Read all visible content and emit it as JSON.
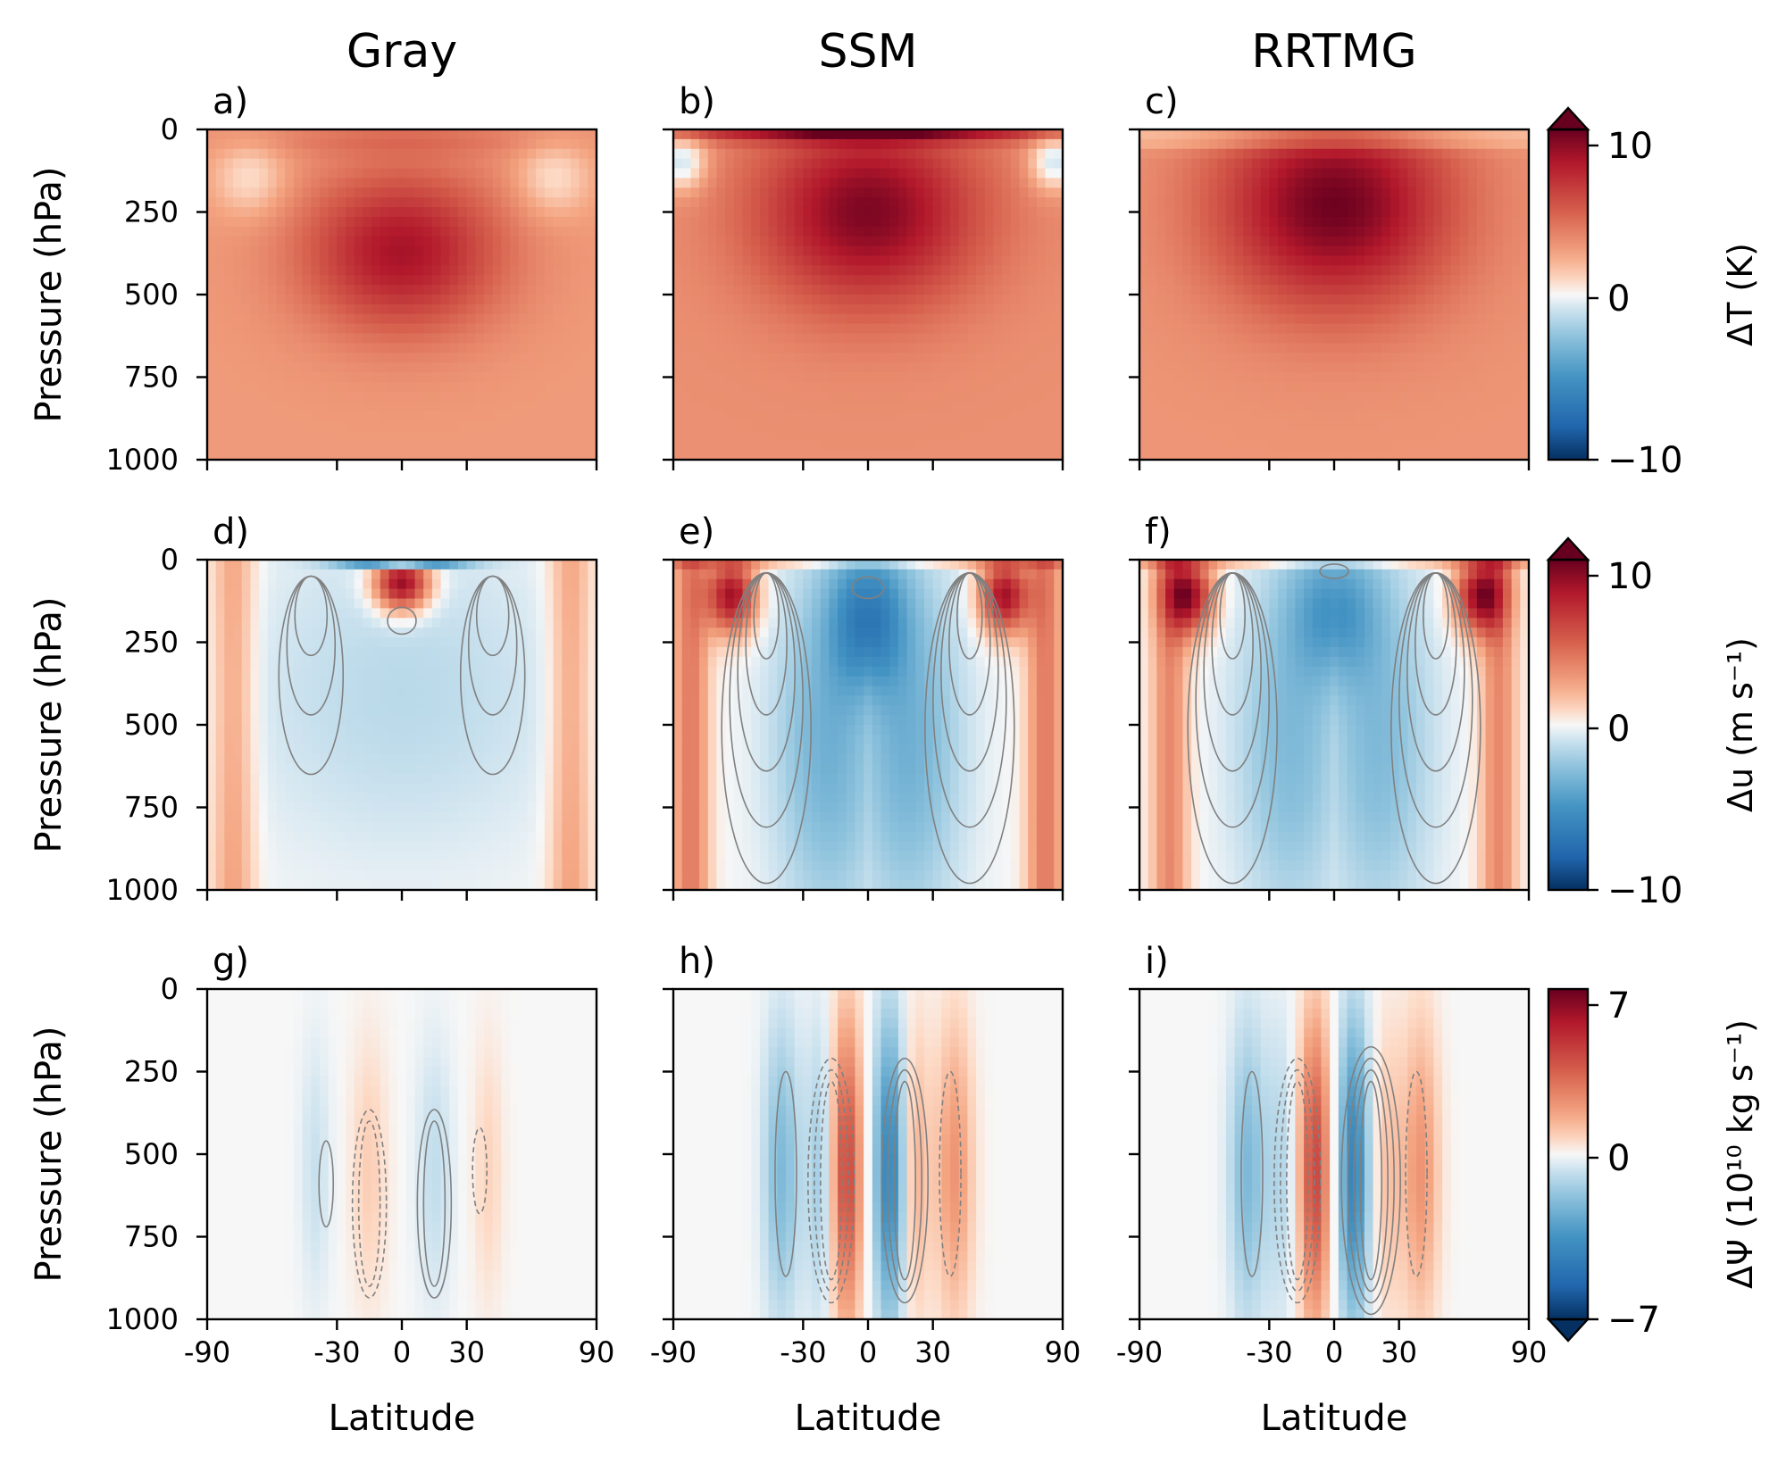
{
  "columns": [
    "Gray",
    "SSM",
    "RRTMG"
  ],
  "chart_data": {
    "type": "heatmap",
    "layout": "3x3 grid of latitude-pressure panels",
    "panel_labels": [
      "a)",
      "b)",
      "c)",
      "d)",
      "e)",
      "f)",
      "g)",
      "h)",
      "i)"
    ],
    "xlabel": "Latitude",
    "ylabel": "Pressure (hPa)",
    "xlim": [
      -90,
      90
    ],
    "ylim": [
      1000,
      0
    ],
    "x_ticks": [
      -90,
      -30,
      0,
      30,
      90
    ],
    "x_tick_labels": [
      "-90",
      "-30",
      "0",
      "30",
      "90"
    ],
    "y_ticks": [
      0,
      250,
      500,
      750,
      1000
    ],
    "y_tick_labels": [
      "0",
      "250",
      "500",
      "750",
      "1000"
    ],
    "colormap": "RdBu_r",
    "colors": {
      "max": "#67001f",
      "high": "#d6604d",
      "mid": "#f7f7f7",
      "low": "#4393c3",
      "min": "#053061",
      "contour": "#808080"
    },
    "rows": [
      {
        "row": "temperature",
        "variable": "ΔT",
        "colorbar_label": "ΔT (K)",
        "clim": [
          -10,
          10
        ],
        "colorbar_ticks": [
          "10",
          "0",
          "−10"
        ],
        "colorbar_extend": "max",
        "contours": false
      },
      {
        "row": "zonal_wind",
        "variable": "Δu",
        "colorbar_label": "Δu (m s⁻¹)",
        "clim": [
          -10,
          10
        ],
        "colorbar_ticks": [
          "10",
          "0",
          "−10"
        ],
        "colorbar_extend": "max",
        "contours": "control jet, solid gray"
      },
      {
        "row": "streamfunction",
        "variable": "ΔΨ",
        "colorbar_label": "ΔΨ (10¹⁰ kg s⁻¹)",
        "clim": [
          -7,
          7
        ],
        "colorbar_ticks": [
          "7",
          "0",
          "−7"
        ],
        "colorbar_extend": "min",
        "contours": "control Ψ, solid positive / dashed negative"
      }
    ]
  }
}
